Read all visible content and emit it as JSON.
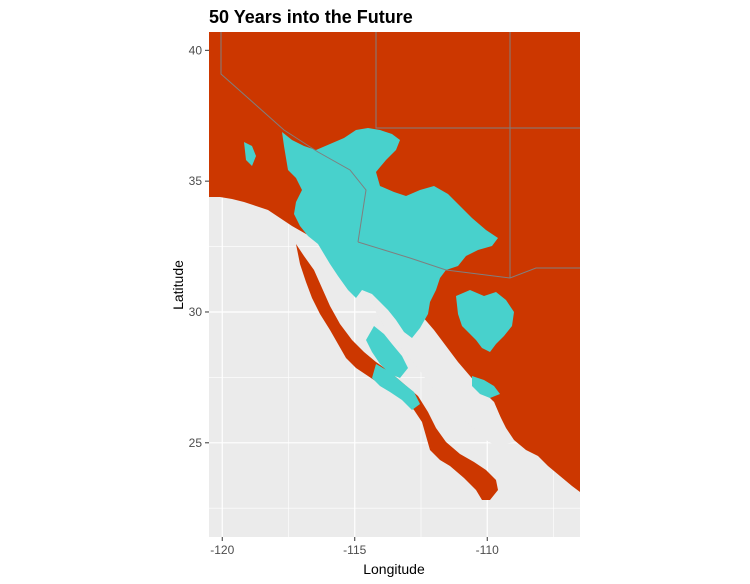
{
  "chart_data": {
    "type": "map",
    "title": "50 Years into the Future",
    "xlabel": "Longitude",
    "ylabel": "Latitude",
    "xlim": [
      -120.5,
      -106.5
    ],
    "ylim": [
      21.4,
      40.7
    ],
    "x_ticks": [
      -120,
      -115,
      -110
    ],
    "y_ticks": [
      25,
      30,
      35,
      40
    ],
    "x_tick_labels": [
      "-120",
      "-115",
      "-110"
    ],
    "y_tick_labels": [
      "25",
      "30",
      "35",
      "40"
    ],
    "grid": true,
    "legend": "none",
    "colors": {
      "panel_background": "#ebebeb",
      "grid": "#ffffff",
      "unsuitable": "#cc3700",
      "suitable": "#48d1cc",
      "state_borders": "#7f7f7f"
    }
  }
}
